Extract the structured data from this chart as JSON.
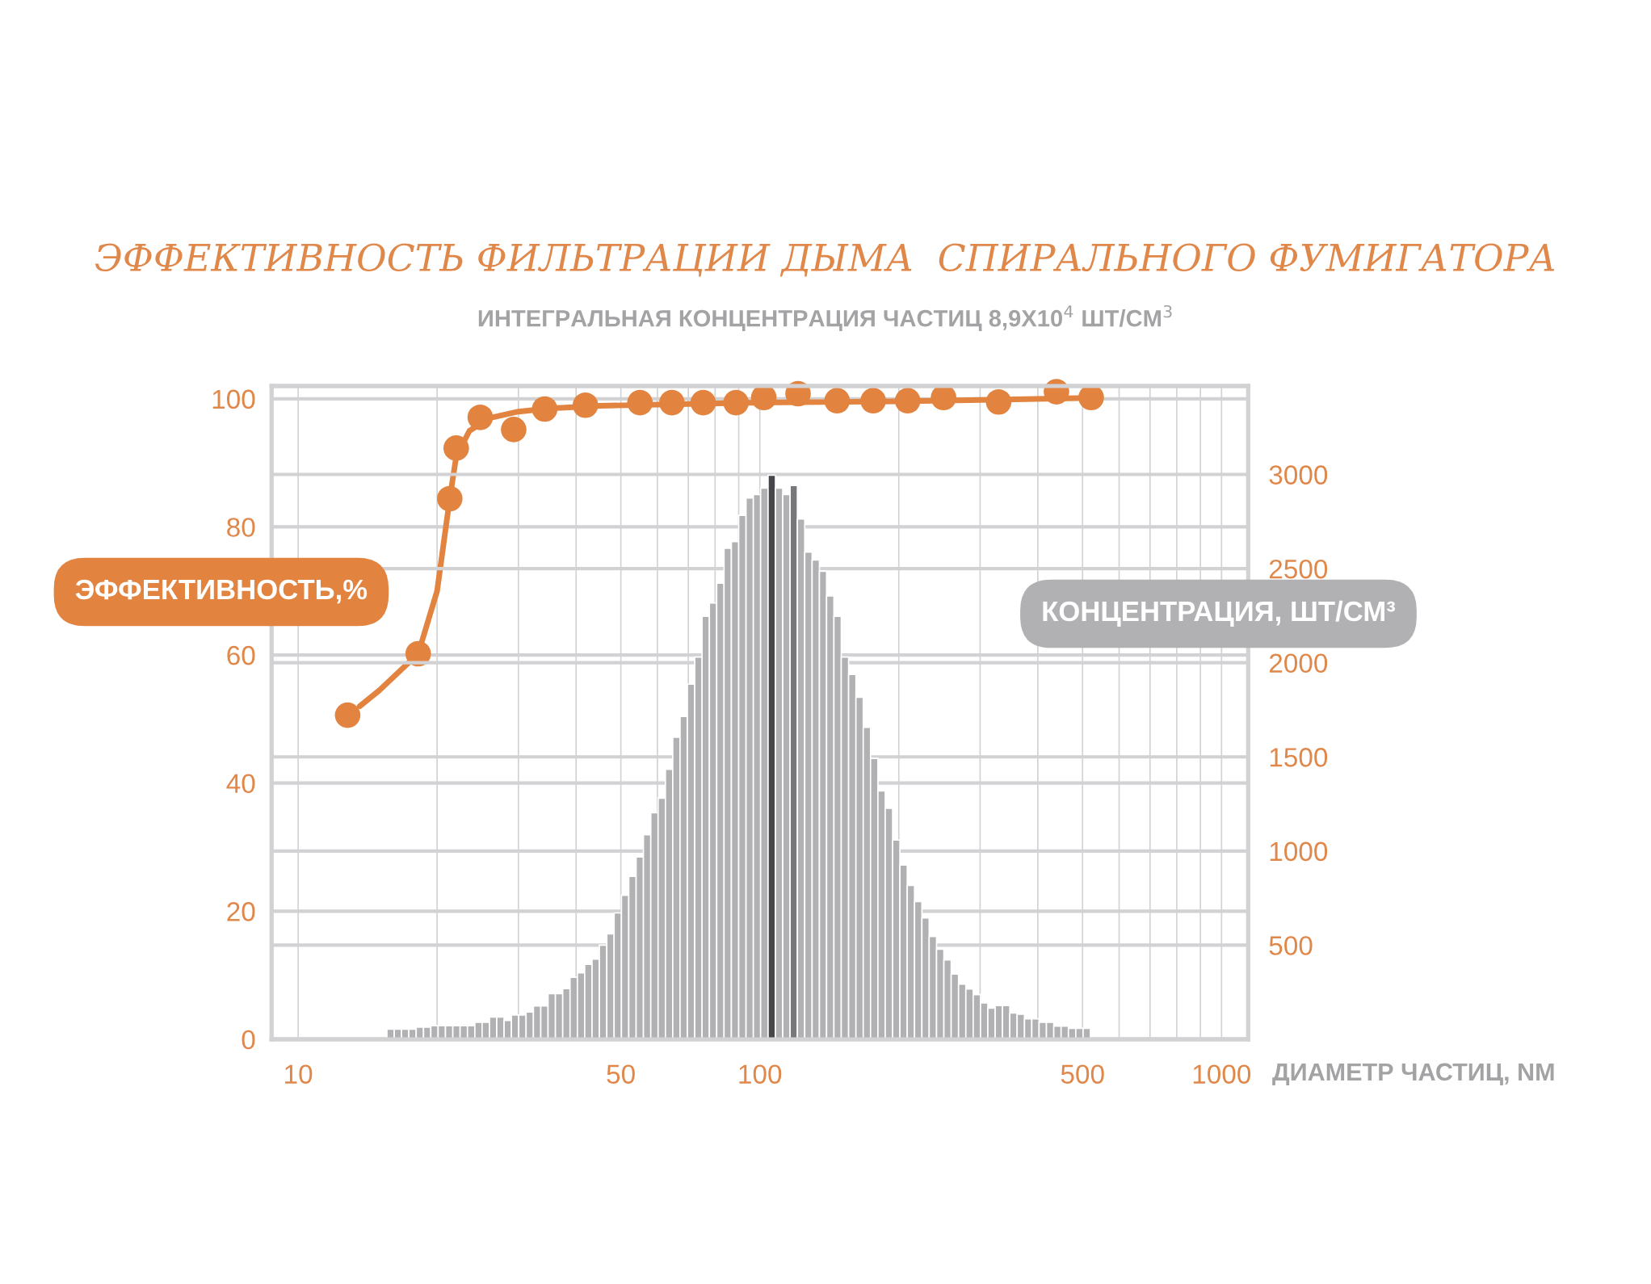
{
  "chart_data": {
    "type": "histogram",
    "title": "ЭФФЕКТИВНОСТЬ ФИЛЬТРАЦИИ ДЫМА  СПИРАЛЬНОГО ФУМИГАТОРА",
    "subtitle": "ИНТЕГРАЛЬНАЯ КОНЦЕНТРАЦИЯ ЧАСТИЦ 8,9Х10$^{4}$ ШТ/СМ$^{3}$",
    "xlabel": "ДИАМЕТР ЧАСТИЦ, NM",
    "ylabel": "ЭФФЕКТИВНОСТЬ,%",
    "y2label": "КОНЦЕНТРАЦИЯ, ШТ/СМ³",
    "log": "x",
    "grid": true,
    "xlim": [
      8.76,
      1142
    ],
    "xticks": [
      10,
      {
        "value": 20,
        "label": null
      },
      {
        "value": 30,
        "label": null
      },
      {
        "value": 40,
        "label": null
      },
      50,
      {
        "value": 60,
        "label": null
      },
      {
        "value": 70,
        "label": null
      },
      {
        "value": 80,
        "label": null
      },
      {
        "value": 90,
        "label": null
      },
      100,
      {
        "value": 200,
        "label": null
      },
      {
        "value": 300,
        "label": null
      },
      {
        "value": 400,
        "label": null
      },
      500,
      {
        "value": 600,
        "label": null
      },
      {
        "value": 700,
        "label": null
      },
      {
        "value": 800,
        "label": null
      },
      {
        "value": 900,
        "label": null
      },
      1000
    ],
    "ylim": [
      0,
      102
    ],
    "yticks": [
      0,
      20,
      40,
      60,
      80,
      100
    ],
    "y2lim": [
      0,
      3470
    ],
    "y2ticks": [
      500,
      1000,
      1500,
      2000,
      2500,
      3000
    ],
    "series": [
      {
        "axis": "y2",
        "bins": [
          15.57,
          16.15,
          16.75,
          17.37,
          18.02,
          18.69,
          19.38,
          20.1,
          20.85,
          21.63,
          22.43,
          23.27,
          24.14,
          25.03,
          25.97,
          26.93,
          27.93,
          28.97,
          30.05,
          31.17,
          32.33,
          33.54,
          34.78,
          36.08,
          37.42,
          38.81,
          40.26,
          41.75,
          43.31,
          44.92,
          46.62,
          48.35,
          50.15,
          52.02,
          53.96,
          55.96,
          58.05,
          60.21,
          62.45,
          64.77,
          67.18,
          69.68,
          72.28,
          74.97,
          77.76,
          80.65,
          83.65,
          86.77,
          90.0,
          93.35,
          96.82,
          100.4,
          104.2,
          108.1,
          112.1,
          116.3,
          120.6,
          125.1,
          129.8,
          134.6,
          139.5,
          144.7,
          150.1,
          155.7,
          161.5,
          167.5,
          173.7,
          180.2,
          186.9,
          193.9,
          201.1,
          208.6,
          216.3,
          224.4,
          232.7,
          241.4,
          250.4,
          259.7,
          269.4,
          279.4,
          289.8,
          300.6,
          311.8,
          323.4,
          335.4,
          347.9,
          360.8,
          374.3,
          388.2,
          402.6,
          417.6,
          433.2,
          449.3,
          466.0,
          483.4,
          501.4,
          520.0
        ],
        "values": [
          54,
          54,
          54,
          54,
          64,
          64,
          72,
          72,
          72,
          72,
          72,
          72,
          90,
          90,
          118,
          118,
          100,
          129,
          129,
          145,
          177,
          177,
          243,
          243,
          269,
          329,
          353,
          398,
          426,
          500,
          560,
          671,
          765,
          865,
          968,
          1086,
          1203,
          1281,
          1434,
          1604,
          1715,
          1886,
          2030,
          2247,
          2317,
          2422,
          2608,
          2643,
          2783,
          2875,
          2893,
          2928,
          2996,
          2928,
          2893,
          2942,
          2763,
          2588,
          2546,
          2486,
          2355,
          2247,
          2030,
          1938,
          1817,
          1657,
          1492,
          1319,
          1227,
          1058,
          926,
          817,
          731,
          645,
          546,
          478,
          422,
          347,
          293,
          267,
          237,
          193,
          165,
          179,
          179,
          139,
          133,
          108,
          108,
          90,
          90,
          70,
          70,
          58,
          58,
          58
        ],
        "colors": [
          "#b1b0b3",
          "#b1b0b3",
          "#b1b0b3",
          "#b1b0b3",
          "#b1b0b3",
          "#b1b0b3",
          "#b1b0b3",
          "#b1b0b3",
          "#b1b0b3",
          "#b1b0b3",
          "#b1b0b3",
          "#b1b0b3",
          "#b1b0b3",
          "#b1b0b3",
          "#b1b0b3",
          "#b1b0b3",
          "#b1b0b3",
          "#b1b0b3",
          "#b1b0b3",
          "#b1b0b3",
          "#b1b0b3",
          "#b1b0b3",
          "#b1b0b3",
          "#b1b0b3",
          "#b1b0b3",
          "#b1b0b3",
          "#b1b0b3",
          "#b1b0b3",
          "#b1b0b3",
          "#b1b0b3",
          "#b1b0b3",
          "#b1b0b3",
          "#b1b0b3",
          "#b1b0b3",
          "#b1b0b3",
          "#b1b0b3",
          "#b1b0b3",
          "#b1b0b3",
          "#b1b0b3",
          "#b1b0b3",
          "#b1b0b3",
          "#b1b0b3",
          "#b1b0b3",
          "#b1b0b3",
          "#b1b0b3",
          "#b1b0b3",
          "#b1b0b3",
          "#b1b0b3",
          "#b1b0b3",
          "#b1b0b3",
          "#b1b0b3",
          "#b1b0b3",
          "#47464a",
          "#b1b0b3",
          "#b1b0b3",
          "#78777b",
          "#b1b0b3",
          "#b1b0b3",
          "#b1b0b3",
          "#b1b0b3",
          "#b1b0b3",
          "#b1b0b3",
          "#b1b0b3",
          "#b1b0b3",
          "#b1b0b3",
          "#b1b0b3",
          "#b1b0b3",
          "#b1b0b3",
          "#b1b0b3",
          "#b1b0b3",
          "#b1b0b3",
          "#b1b0b3",
          "#b1b0b3",
          "#b1b0b3",
          "#b1b0b3",
          "#b1b0b3",
          "#b1b0b3",
          "#b1b0b3",
          "#b1b0b3",
          "#b1b0b3",
          "#b1b0b3",
          "#b1b0b3",
          "#b1b0b3",
          "#b1b0b3",
          "#b1b0b3",
          "#b1b0b3",
          "#b1b0b3",
          "#b1b0b3",
          "#b1b0b3",
          "#b1b0b3",
          "#b1b0b3",
          "#b1b0b3",
          "#b1b0b3",
          "#b1b0b3",
          "#b1b0b3",
          "#b1b0b3"
        ]
      },
      {
        "type": "line",
        "color": "#e2843f",
        "x": [
          13.6,
          15,
          18.2,
          20,
          21.3,
          22,
          23.5,
          26,
          30,
          35,
          45,
          60,
          100,
          200,
          492
        ],
        "values": [
          52,
          54.5,
          60.2,
          70,
          84.4,
          91,
          95,
          97,
          98,
          98.5,
          98.9,
          99.1,
          99.4,
          99.6,
          100.1
        ]
      },
      {
        "type": "scatter",
        "color": "#e2843f",
        "marker": "circle",
        "x": [
          12.8,
          18.2,
          21.3,
          22.0,
          24.8,
          29.3,
          34.2,
          41.9,
          55.0,
          64.5,
          75.4,
          88.8,
          102,
          121,
          147,
          176,
          209,
          250,
          329,
          439,
          522
        ],
        "values": [
          50.6,
          60.2,
          84.4,
          92.3,
          97.1,
          95.2,
          98.4,
          99.0,
          99.4,
          99.4,
          99.4,
          99.4,
          100.2,
          100.8,
          99.7,
          99.7,
          99.7,
          100.2,
          99.5,
          101.1,
          100.2
        ]
      }
    ]
  }
}
